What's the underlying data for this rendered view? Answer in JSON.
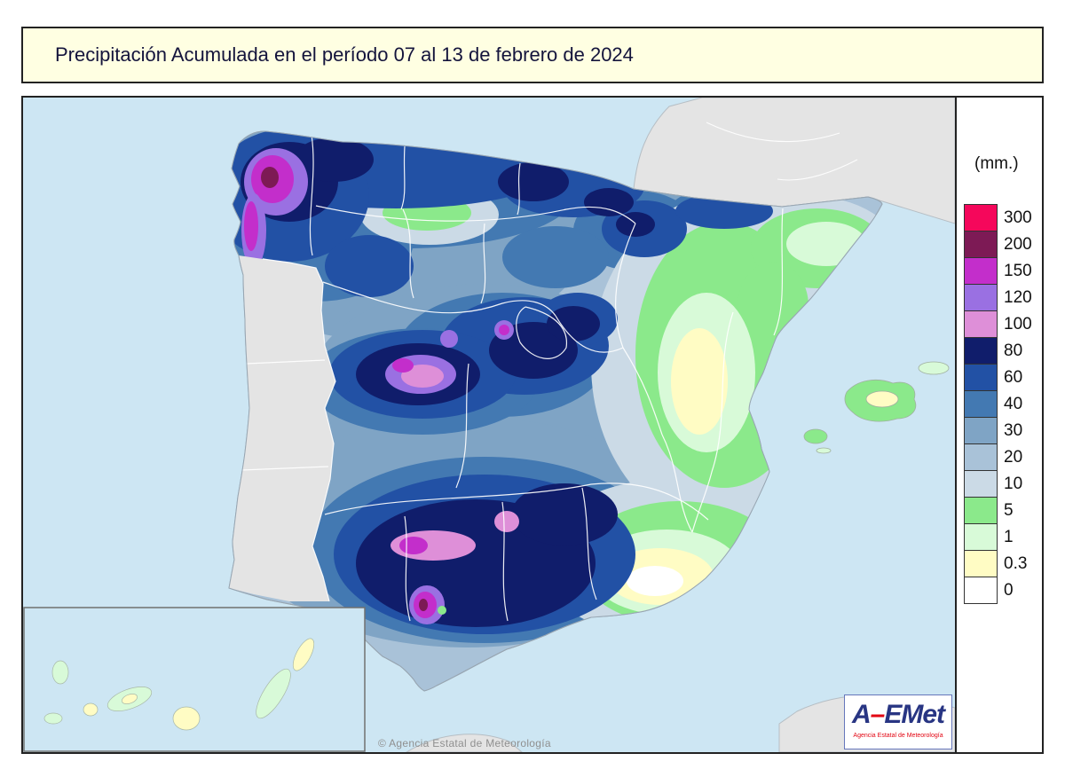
{
  "title": "Precipitación Acumulada en el período 07 al 13 de febrero de 2024",
  "legend": {
    "units": "(mm.)",
    "entries": [
      {
        "value": "300",
        "color": "#F5075B"
      },
      {
        "value": "200",
        "color": "#7D1A55"
      },
      {
        "value": "150",
        "color": "#C32ECB"
      },
      {
        "value": "120",
        "color": "#9A70E2"
      },
      {
        "value": "100",
        "color": "#DE8FD8"
      },
      {
        "value": "80",
        "color": "#101D6B"
      },
      {
        "value": "60",
        "color": "#2251A5"
      },
      {
        "value": "40",
        "color": "#4379B2"
      },
      {
        "value": "30",
        "color": "#7FA4C5"
      },
      {
        "value": "20",
        "color": "#A9C2D8"
      },
      {
        "value": "10",
        "color": "#CBDAE6"
      },
      {
        "value": "5",
        "color": "#8BE98B"
      },
      {
        "value": "1",
        "color": "#D8FAD8"
      },
      {
        "value": "0.3",
        "color": "#FFFCC4"
      },
      {
        "value": "0",
        "color": "#FFFFFF"
      }
    ]
  },
  "map": {
    "copyright": "© Agencia Estatal de Meteorología",
    "sea_color": "#CDE6F3",
    "land_nodata_color": "#E4E4E4"
  },
  "logo": {
    "text_a": "A",
    "text_dash": "–",
    "text_rest": "EMet",
    "caption": "Agencia Estatal de Meteorología"
  }
}
